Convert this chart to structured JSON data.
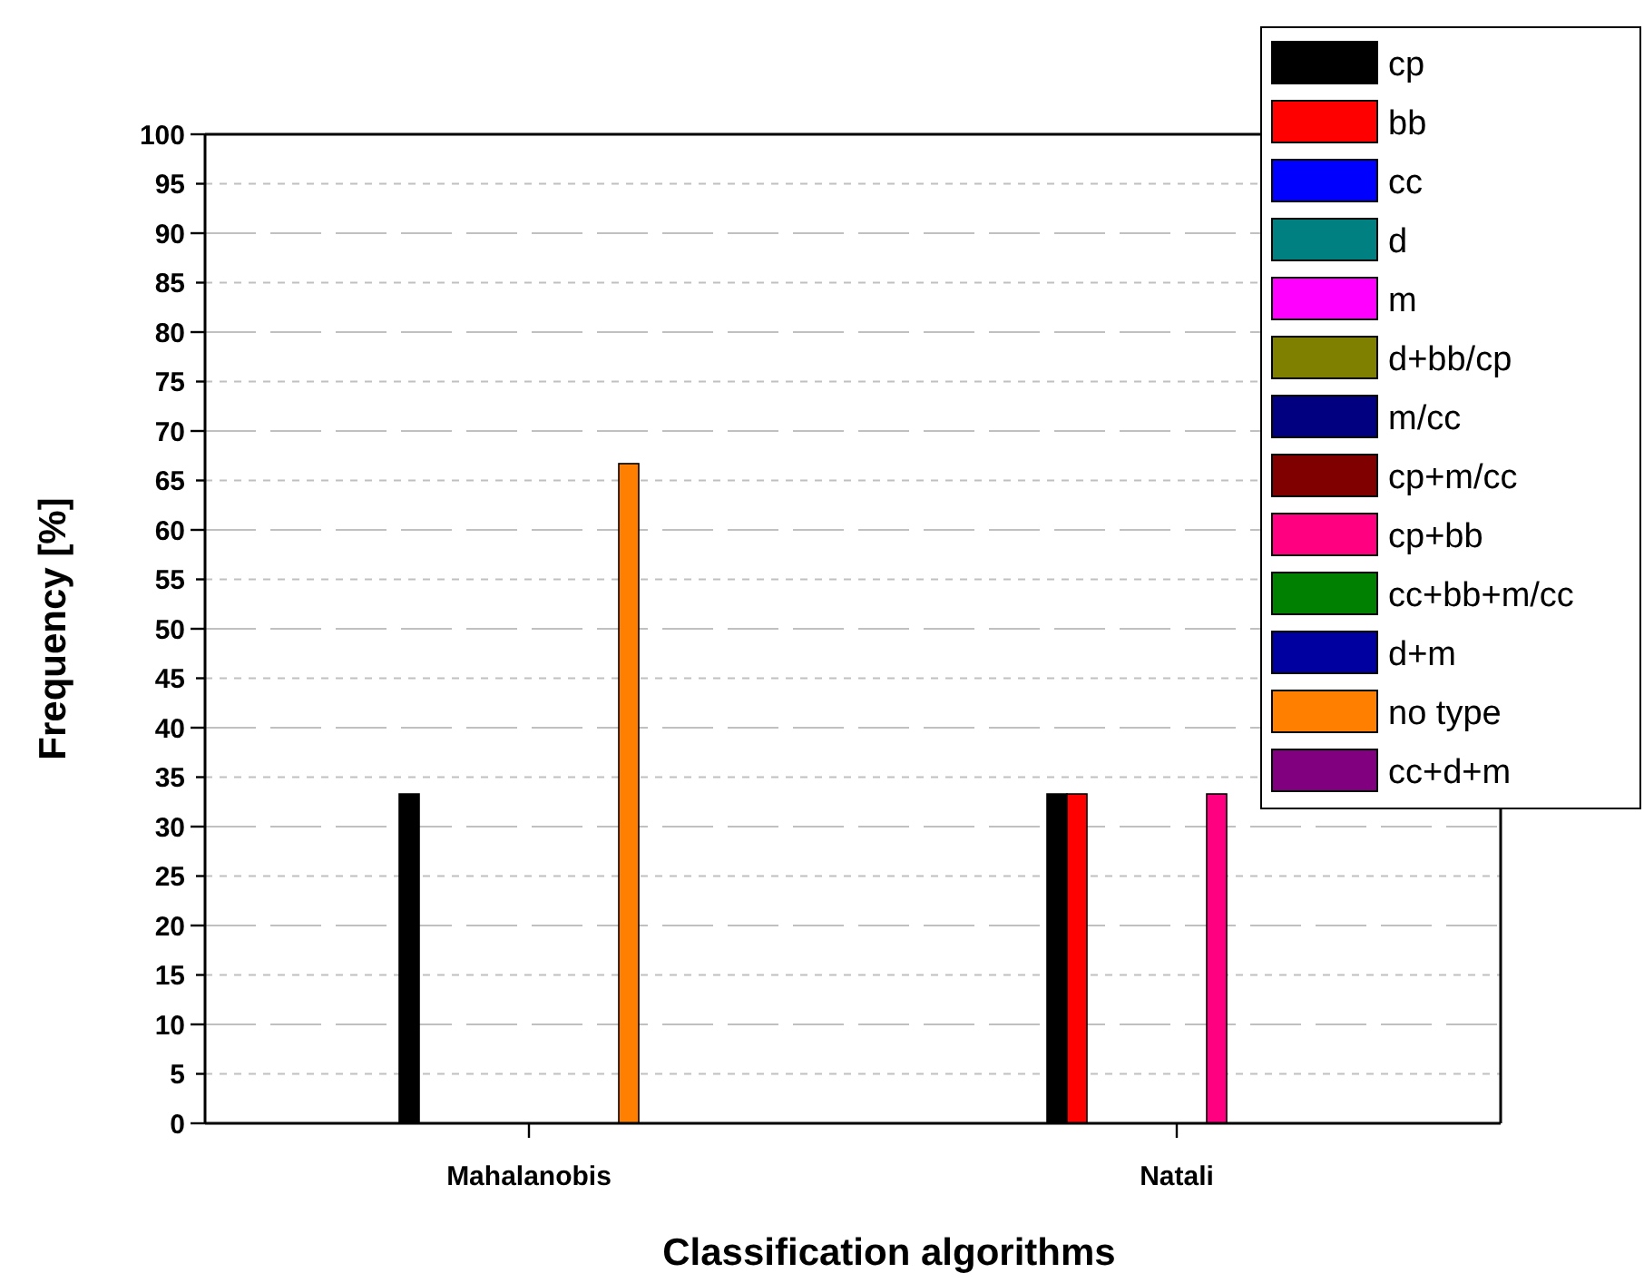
{
  "chart_data": {
    "type": "bar",
    "xlabel": "Classification algorithms",
    "ylabel": "Frequency [%]",
    "categories": [
      "Mahalanobis",
      "Natali"
    ],
    "series": [
      {
        "name": "cp",
        "color": "#000000",
        "values": [
          33.3,
          33.3
        ]
      },
      {
        "name": "bb",
        "color": "#ff0000",
        "values": [
          0,
          33.3
        ]
      },
      {
        "name": "cc",
        "color": "#0000ff",
        "values": [
          0,
          0
        ]
      },
      {
        "name": "d",
        "color": "#008080",
        "values": [
          0,
          0
        ]
      },
      {
        "name": "m",
        "color": "#ff00ff",
        "values": [
          0,
          0
        ]
      },
      {
        "name": "d+bb/cp",
        "color": "#808000",
        "values": [
          0,
          0
        ]
      },
      {
        "name": "m/cc",
        "color": "#000080",
        "values": [
          0,
          0
        ]
      },
      {
        "name": "cp+m/cc",
        "color": "#800000",
        "values": [
          0,
          0
        ]
      },
      {
        "name": "cp+bb",
        "color": "#ff0080",
        "values": [
          0,
          33.3
        ]
      },
      {
        "name": "cc+bb+m/cc",
        "color": "#008000",
        "values": [
          0,
          0
        ]
      },
      {
        "name": "d+m",
        "color": "#0000a0",
        "values": [
          0,
          0
        ]
      },
      {
        "name": "no type",
        "color": "#ff8000",
        "values": [
          66.7,
          0
        ]
      },
      {
        "name": "cc+d+m",
        "color": "#800080",
        "values": [
          0,
          0
        ]
      }
    ],
    "ylim": [
      0,
      100
    ],
    "yticks": [
      0,
      5,
      10,
      15,
      20,
      25,
      30,
      35,
      40,
      45,
      50,
      55,
      60,
      65,
      70,
      75,
      80,
      85,
      90,
      95,
      100
    ],
    "grid": "y",
    "legend": "top right"
  }
}
